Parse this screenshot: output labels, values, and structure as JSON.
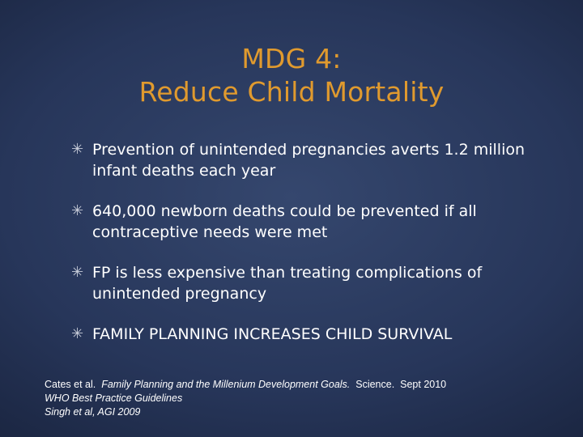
{
  "slide": {
    "title_line1": "MDG 4:",
    "title_line2": "Reduce Child Mortality",
    "bullet_icon": "asterisk-icon",
    "bullets": [
      {
        "text": "Prevention of unintended pregnancies averts 1.2 million infant deaths each year"
      },
      {
        "text": "640,000 newborn deaths could be prevented if all contraceptive needs were met"
      },
      {
        "text": "FP is less expensive than treating complications of unintended pregnancy"
      },
      {
        "text": "FAMILY PLANNING INCREASES CHILD SURVIVAL"
      }
    ],
    "references": {
      "line1_author": "Cates et al.",
      "line1_title": "Family Planning and the Millenium Development Goals.",
      "line1_journal": "Science.",
      "line1_date": "Sept 2010",
      "line2": "WHO Best Practice Guidelines",
      "line3": "Singh et al, AGI 2009"
    },
    "colors": {
      "title": "#e09a2e",
      "text": "#ffffff",
      "background": "#27365a"
    }
  }
}
